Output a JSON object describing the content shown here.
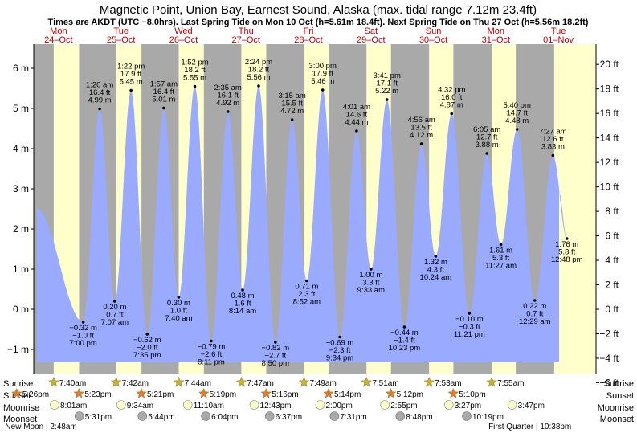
{
  "header": {
    "title": "Magnetic Point, Union Bay, Earnest Sound, Alaska (max. tidal range 7.12m 23.4ft)",
    "subtitle": "Times are AKDT (UTC −8.0hrs). Last Spring Tide on Mon 10 Oct (h=5.61m 18.4ft). Next Spring Tide on Thu 27 Oct (h=5.56m 18.2ft)"
  },
  "days": [
    {
      "dow": "Mon",
      "date": "24–Oct"
    },
    {
      "dow": "Tue",
      "date": "25–Oct"
    },
    {
      "dow": "Wed",
      "date": "26–Oct"
    },
    {
      "dow": "Thu",
      "date": "27–Oct"
    },
    {
      "dow": "Fri",
      "date": "28–Oct"
    },
    {
      "dow": "Sat",
      "date": "29–Oct"
    },
    {
      "dow": "Sun",
      "date": "30–Oct"
    },
    {
      "dow": "Mon",
      "date": "31–Oct"
    },
    {
      "dow": "Tue",
      "date": "01–Nov"
    }
  ],
  "chart_data": {
    "type": "area",
    "title": "Magnetic Point, Union Bay, Earnest Sound, Alaska",
    "x_unit": "hours since Mon 24-Oct 00:00 AKDT",
    "xlim": [
      0,
      216
    ],
    "ylim": [
      -1.6,
      6.6
    ],
    "y_left_ticks": [
      {
        "v": -1,
        "label": "−1 m"
      },
      {
        "v": 0,
        "label": "0 m"
      },
      {
        "v": 1,
        "label": "1 m"
      },
      {
        "v": 2,
        "label": "2 m"
      },
      {
        "v": 3,
        "label": "3 m"
      },
      {
        "v": 4,
        "label": "4 m"
      },
      {
        "v": 5,
        "label": "5 m"
      },
      {
        "v": 6,
        "label": "6 m"
      }
    ],
    "y_right_ticks": [
      {
        "ft": -6,
        "label": "−6 ft"
      },
      {
        "ft": -4,
        "label": "−4 ft"
      },
      {
        "ft": -2,
        "label": "−2 ft"
      },
      {
        "ft": 0,
        "label": "0 ft"
      },
      {
        "ft": 2,
        "label": "2 ft"
      },
      {
        "ft": 4,
        "label": "4 ft"
      },
      {
        "ft": 6,
        "label": "6 ft"
      },
      {
        "ft": 8,
        "label": "8 ft"
      },
      {
        "ft": 10,
        "label": "10 ft"
      },
      {
        "ft": 12,
        "label": "12 ft"
      },
      {
        "ft": 14,
        "label": "14 ft"
      },
      {
        "ft": 16,
        "label": "16 ft"
      },
      {
        "ft": 18,
        "label": "18 ft"
      },
      {
        "ft": 20,
        "label": "20 ft"
      }
    ],
    "start": {
      "x": 1.2,
      "y": 2.5
    },
    "end": {
      "x": 201.8,
      "y": 2.9
    },
    "tides": [
      {
        "x": 19.0,
        "h": -0.32,
        "type": "low",
        "time": "7:00 pm",
        "m": "−0.32 m",
        "ft": "−1.0 ft"
      },
      {
        "x": 25.33,
        "h": 4.99,
        "type": "high",
        "time": "1:20 am",
        "m": "4.99 m",
        "ft": "16.4 ft"
      },
      {
        "x": 31.12,
        "h": 0.2,
        "type": "low",
        "time": "7:07 am",
        "m": "0.20 m",
        "ft": "0.7 ft"
      },
      {
        "x": 37.37,
        "h": 5.45,
        "type": "high",
        "time": "1:22 pm",
        "m": "5.45 m",
        "ft": "17.9 ft"
      },
      {
        "x": 43.58,
        "h": -0.62,
        "type": "low",
        "time": "7:35 pm",
        "m": "−0.62 m",
        "ft": "−2.0 ft"
      },
      {
        "x": 49.95,
        "h": 5.01,
        "type": "high",
        "time": "1:57 am",
        "m": "5.01 m",
        "ft": "16.4 ft"
      },
      {
        "x": 55.67,
        "h": 0.3,
        "type": "low",
        "time": "7:40 am",
        "m": "0.30 m",
        "ft": "1.0 ft"
      },
      {
        "x": 61.87,
        "h": 5.55,
        "type": "high",
        "time": "1:52 pm",
        "m": "5.55 m",
        "ft": "18.2 ft"
      },
      {
        "x": 68.18,
        "h": -0.79,
        "type": "low",
        "time": "8:11 pm",
        "m": "−0.79 m",
        "ft": "−2.6 ft"
      },
      {
        "x": 74.58,
        "h": 4.92,
        "type": "high",
        "time": "2:35 am",
        "m": "4.92 m",
        "ft": "16.1 ft"
      },
      {
        "x": 80.23,
        "h": 0.48,
        "type": "low",
        "time": "8:14 am",
        "m": "0.48 m",
        "ft": "1.6 ft"
      },
      {
        "x": 86.4,
        "h": 5.56,
        "type": "high",
        "time": "2:24 pm",
        "m": "5.56 m",
        "ft": "18.2 ft"
      },
      {
        "x": 92.83,
        "h": -0.82,
        "type": "low",
        "time": "8:50 pm",
        "m": "−0.82 m",
        "ft": "−2.7 ft"
      },
      {
        "x": 99.25,
        "h": 4.72,
        "type": "high",
        "time": "3:15 am",
        "m": "4.72 m",
        "ft": "15.5 ft"
      },
      {
        "x": 104.87,
        "h": 0.71,
        "type": "low",
        "time": "8:52 am",
        "m": "0.71 m",
        "ft": "2.3 ft"
      },
      {
        "x": 111.0,
        "h": 5.46,
        "type": "high",
        "time": "3:00 pm",
        "m": "5.46 m",
        "ft": "17.9 ft"
      },
      {
        "x": 117.57,
        "h": -0.69,
        "type": "low",
        "time": "9:34 pm",
        "m": "−0.69 m",
        "ft": "−2.3 ft"
      },
      {
        "x": 124.02,
        "h": 4.44,
        "type": "high",
        "time": "4:01 am",
        "m": "4.44 m",
        "ft": "14.6 ft"
      },
      {
        "x": 129.55,
        "h": 1.0,
        "type": "low",
        "time": "9:33 am",
        "m": "1.00 m",
        "ft": "3.3 ft"
      },
      {
        "x": 135.68,
        "h": 5.22,
        "type": "high",
        "time": "3:41 pm",
        "m": "5.22 m",
        "ft": "17.1 ft"
      },
      {
        "x": 142.38,
        "h": -0.44,
        "type": "low",
        "time": "10:23 pm",
        "m": "−0.44 m",
        "ft": "−1.4 ft"
      },
      {
        "x": 148.93,
        "h": 4.12,
        "type": "high",
        "time": "4:56 am",
        "m": "4.12 m",
        "ft": "13.5 ft"
      },
      {
        "x": 154.4,
        "h": 1.32,
        "type": "low",
        "time": "10:24 am",
        "m": "1.32 m",
        "ft": "4.3 ft"
      },
      {
        "x": 160.53,
        "h": 4.87,
        "type": "high",
        "time": "4:32 pm",
        "m": "4.87 m",
        "ft": "16.0 ft"
      },
      {
        "x": 167.35,
        "h": -0.1,
        "type": "low",
        "time": "11:21 pm",
        "m": "−0.10 m",
        "ft": "−0.3 ft"
      },
      {
        "x": 174.08,
        "h": 3.88,
        "type": "high",
        "time": "6:05 am",
        "m": "3.88 m",
        "ft": "12.7 ft"
      },
      {
        "x": 179.45,
        "h": 1.61,
        "type": "low",
        "time": "11:27 am",
        "m": "1.61 m",
        "ft": "5.3 ft"
      },
      {
        "x": 185.67,
        "h": 4.48,
        "type": "high",
        "time": "5:40 pm",
        "m": "4.48 m",
        "ft": "14.7 ft"
      },
      {
        "x": 192.48,
        "h": 0.22,
        "type": "low",
        "time": "12:29 am",
        "m": "0.22 m",
        "ft": "0.7 ft"
      },
      {
        "x": 199.45,
        "h": 3.83,
        "type": "high",
        "time": "7:27 am",
        "m": "3.83 m",
        "ft": "12.6 ft"
      },
      {
        "x": 204.8,
        "h": 1.76,
        "type": "low",
        "time": "12:48 pm",
        "m": "1.76 m",
        "ft": "5.8 ft"
      }
    ],
    "daylight": [
      {
        "sunrise": 7.67,
        "sunset": 17.43
      },
      {
        "sunrise": 31.67,
        "sunset": 41.38
      },
      {
        "sunrise": 55.7,
        "sunset": 65.35
      },
      {
        "sunrise": 79.73,
        "sunset": 89.32
      },
      {
        "sunrise": 103.78,
        "sunset": 113.27
      },
      {
        "sunrise": 127.82,
        "sunset": 137.23
      },
      {
        "sunrise": 151.85,
        "sunset": 161.2
      },
      {
        "sunrise": 175.88,
        "sunset": 185.17
      },
      {
        "sunrise": 199.92,
        "sunset": 216
      }
    ],
    "sunrise": [
      {
        "x": 7.67,
        "label": "7:40am"
      },
      {
        "x": 31.67,
        "label": "7:42am"
      },
      {
        "x": 55.73,
        "label": "7:44am"
      },
      {
        "x": 79.78,
        "label": "7:47am"
      },
      {
        "x": 103.82,
        "label": "7:49am"
      },
      {
        "x": 127.85,
        "label": "7:51am"
      },
      {
        "x": 151.88,
        "label": "7:53am"
      },
      {
        "x": 175.92,
        "label": "7:55am"
      }
    ],
    "sunset": [
      {
        "x": -6.57,
        "label": "5:26pm"
      },
      {
        "x": 17.38,
        "label": "5:23pm"
      },
      {
        "x": 41.35,
        "label": "5:21pm"
      },
      {
        "x": 65.32,
        "label": "5:19pm"
      },
      {
        "x": 89.27,
        "label": "5:16pm"
      },
      {
        "x": 113.23,
        "label": "5:14pm"
      },
      {
        "x": 137.2,
        "label": "5:12pm"
      },
      {
        "x": 161.17,
        "label": "5:10pm"
      }
    ],
    "moonrise": [
      {
        "x": 8.02,
        "label": "8:01am"
      },
      {
        "x": 33.57,
        "label": "9:34am"
      },
      {
        "x": 59.17,
        "label": "11:10am"
      },
      {
        "x": 84.72,
        "label": "12:43pm"
      },
      {
        "x": 110.0,
        "label": "2:00pm"
      },
      {
        "x": 134.92,
        "label": "2:55pm"
      },
      {
        "x": 159.45,
        "label": "3:27pm"
      },
      {
        "x": 183.78,
        "label": "3:47pm"
      }
    ],
    "moonset": [
      {
        "x": 17.52,
        "label": "5:31pm"
      },
      {
        "x": 41.73,
        "label": "5:44pm"
      },
      {
        "x": 66.07,
        "label": "6:04pm"
      },
      {
        "x": 90.62,
        "label": "6:37pm"
      },
      {
        "x": 115.52,
        "label": "7:31pm"
      },
      {
        "x": 140.8,
        "label": "8:48pm"
      },
      {
        "x": 166.32,
        "label": "10:19pm"
      }
    ],
    "moon_phases": [
      {
        "x": 2.8,
        "label": "New Moon | 2:48am"
      },
      {
        "x": 190.6,
        "label": "First Quarter | 10:38pm"
      }
    ]
  },
  "rows": {
    "sunrise": "Sunrise",
    "sunset": "Sunset",
    "moonrise": "Moonrise",
    "moonset": "Moonset"
  },
  "colors": {
    "night": "#a9a9a9",
    "day": "#ffffcc",
    "water": "#99aaff",
    "sunrise_star": "#c8b030",
    "sunset_star": "#e07a30",
    "moonrise": "#ffffcc",
    "moonset": "#a9a9a9"
  }
}
